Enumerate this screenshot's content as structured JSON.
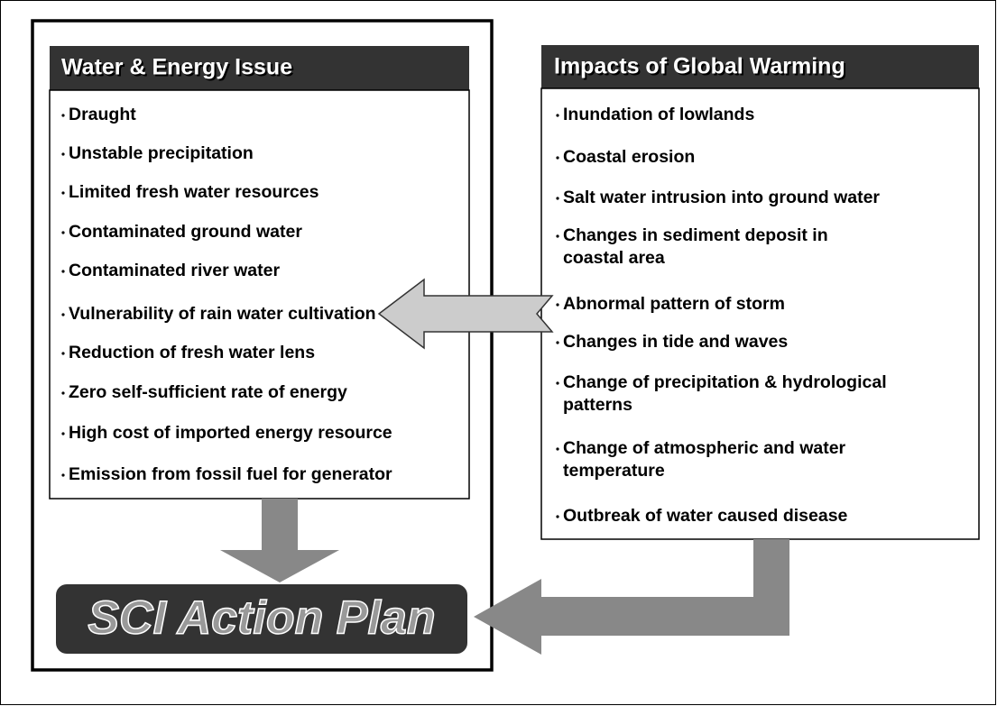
{
  "left": {
    "title": "Water & Energy Issue",
    "items": [
      [
        "Draught"
      ],
      [
        "Unstable precipitation"
      ],
      [
        "Limited fresh water resources"
      ],
      [
        "Contaminated ground water"
      ],
      [
        "Contaminated river water"
      ],
      [
        "Vulnerability of rain water cultivation"
      ],
      [
        "Reduction of fresh water lens"
      ],
      [
        "Zero self-sufficient rate of energy"
      ],
      [
        "High cost of imported energy resource"
      ],
      [
        "Emission from fossil fuel for generator"
      ]
    ]
  },
  "right": {
    "title": "Impacts of Global Warming",
    "items": [
      [
        "Inundation of lowlands"
      ],
      [
        "Coastal erosion"
      ],
      [
        "Salt water intrusion into ground water"
      ],
      [
        "Changes in sediment deposit in",
        "coastal area"
      ],
      [
        "Abnormal pattern of storm"
      ],
      [
        "Changes in tide and waves"
      ],
      [
        "Change of precipitation & hydrological",
        "patterns"
      ],
      [
        "Change of atmospheric and water",
        "temperature"
      ],
      [
        "Outbreak of water caused disease"
      ]
    ]
  },
  "result": "SCI Action Plan"
}
